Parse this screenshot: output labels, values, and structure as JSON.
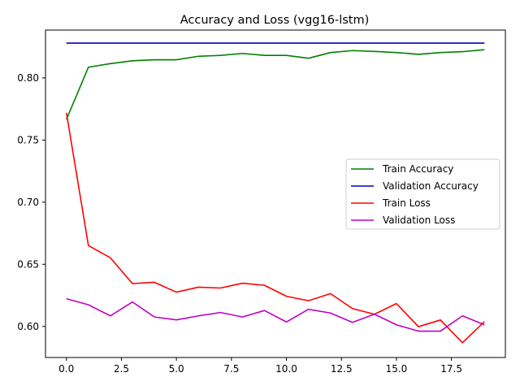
{
  "chart_data": {
    "type": "line",
    "title": "Accuracy and Loss (vgg16-lstm)",
    "xlabel": "",
    "ylabel": "",
    "xlim": [
      -0.95,
      19.95
    ],
    "ylim": [
      0.575,
      0.8385
    ],
    "xticks": [
      0.0,
      2.5,
      5.0,
      7.5,
      10.0,
      12.5,
      15.0,
      17.5
    ],
    "xtick_labels": [
      "0.0",
      "2.5",
      "5.0",
      "7.5",
      "10.0",
      "12.5",
      "15.0",
      "17.5"
    ],
    "yticks": [
      0.6,
      0.65,
      0.7,
      0.75,
      0.8
    ],
    "ytick_labels": [
      "0.60",
      "0.65",
      "0.70",
      "0.75",
      "0.80"
    ],
    "grid": false,
    "legend_position": "center-right",
    "x": [
      0,
      1,
      2,
      3,
      4,
      5,
      6,
      7,
      8,
      9,
      10,
      11,
      12,
      13,
      14,
      15,
      16,
      17,
      18,
      19
    ],
    "series": [
      {
        "name": "Train Accuracy",
        "color": "#008000",
        "values": [
          0.7665,
          0.8086,
          0.8115,
          0.8138,
          0.8146,
          0.8146,
          0.8174,
          0.8181,
          0.8197,
          0.8181,
          0.8181,
          0.8158,
          0.8204,
          0.822,
          0.8213,
          0.8204,
          0.819,
          0.8204,
          0.8211,
          0.8227
        ]
      },
      {
        "name": "Validation Accuracy",
        "color": "#0000bf",
        "values": [
          0.828,
          0.828,
          0.828,
          0.828,
          0.828,
          0.828,
          0.828,
          0.828,
          0.828,
          0.828,
          0.828,
          0.828,
          0.828,
          0.828,
          0.828,
          0.828,
          0.828,
          0.828,
          0.828,
          0.828
        ]
      },
      {
        "name": "Train Loss",
        "color": "#ff0000",
        "values": [
          0.772,
          0.6651,
          0.6552,
          0.6345,
          0.6355,
          0.6276,
          0.6316,
          0.6309,
          0.6348,
          0.6331,
          0.6243,
          0.6207,
          0.6264,
          0.6144,
          0.6098,
          0.6184,
          0.5998,
          0.6052,
          0.5869,
          0.6039
        ]
      },
      {
        "name": "Validation Loss",
        "color": "#bf00bf",
        "values": [
          0.6223,
          0.6174,
          0.6085,
          0.6197,
          0.6076,
          0.6053,
          0.6085,
          0.6112,
          0.6076,
          0.6128,
          0.6036,
          0.6138,
          0.6108,
          0.6033,
          0.6098,
          0.6013,
          0.5962,
          0.5962,
          0.6085,
          0.6013
        ]
      }
    ]
  }
}
